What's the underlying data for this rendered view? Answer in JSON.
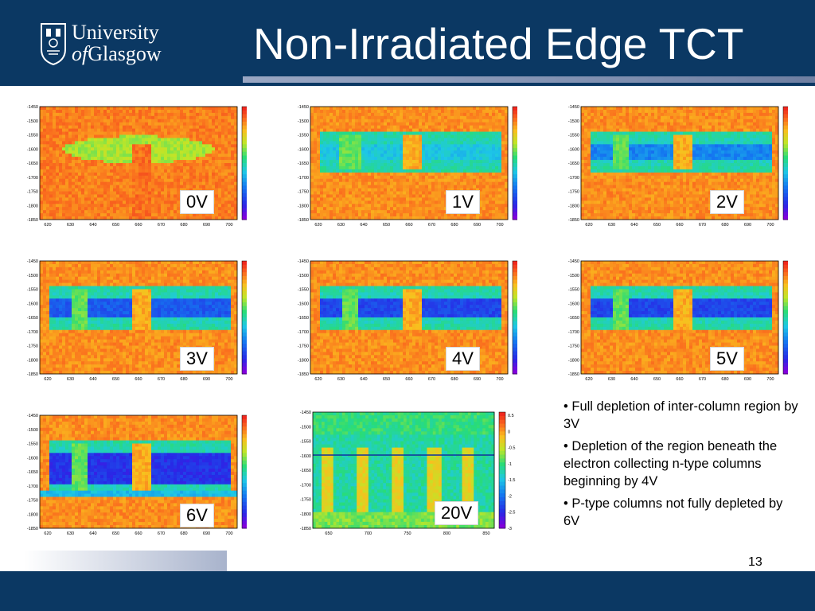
{
  "header": {
    "logo_line1": "University",
    "logo_line2a": "of",
    "logo_line2b": "Glasgow",
    "title": "Non-Irradiated Edge TCT"
  },
  "plots": [
    {
      "label": "0V",
      "stage": 0
    },
    {
      "label": "1V",
      "stage": 1
    },
    {
      "label": "2V",
      "stage": 2
    },
    {
      "label": "3V",
      "stage": 3
    },
    {
      "label": "4V",
      "stage": 4
    },
    {
      "label": "5V",
      "stage": 5
    },
    {
      "label": "6V",
      "stage": 6
    },
    {
      "label": "20V",
      "stage": 20
    }
  ],
  "axes": {
    "y_ticks": [
      "-1450",
      "-1500",
      "-1550",
      "-1600",
      "-1650",
      "-1700",
      "-1750",
      "-1800",
      "-1850"
    ],
    "x_ticks": [
      "620",
      "630",
      "640",
      "650",
      "660",
      "670",
      "680",
      "690",
      "700"
    ],
    "z_ticks": [
      "0.5",
      "0",
      "-0.5",
      "-1",
      "-1.5",
      "-2",
      "-2.5",
      "-3"
    ],
    "y_ticks_20v": [
      "-1450",
      "-1500",
      "-1550",
      "-1600",
      "-1650",
      "-1700",
      "-1750",
      "-1800",
      "-1850"
    ],
    "x_ticks_20v": [
      "650",
      "700",
      "750",
      "800",
      "850"
    ]
  },
  "bullets": [
    "• Full depletion of inter-column region by 3V",
    "• Depletion of the region beneath the electron collecting n-type columns beginning by 4V",
    "• P-type columns not fully depleted by 6V"
  ],
  "page_number": "13",
  "colors": {
    "header_bg": "#0b3863",
    "accent_bar": "#7d8dae"
  }
}
